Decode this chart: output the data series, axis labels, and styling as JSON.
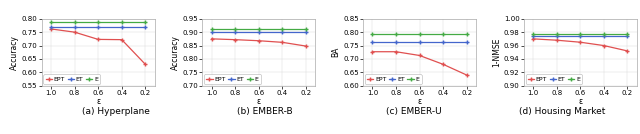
{
  "epsilon": [
    1.0,
    0.8,
    0.6,
    0.4,
    0.2
  ],
  "plots": [
    {
      "subtitle": "(a) Hyperplane",
      "ylabel": "Accuracy",
      "ylim": [
        0.55,
        0.8
      ],
      "yticks": [
        0.55,
        0.6,
        0.65,
        0.7,
        0.75,
        0.8
      ],
      "ytick_labels": [
        "0.55",
        "0.60",
        "0.65",
        "0.70",
        "0.75",
        "0.80"
      ],
      "EPT": [
        0.762,
        0.75,
        0.723,
        0.722,
        0.63
      ],
      "ET": [
        0.77,
        0.77,
        0.77,
        0.77,
        0.77
      ],
      "E": [
        0.787,
        0.787,
        0.787,
        0.787,
        0.787
      ]
    },
    {
      "subtitle": "(b) EMBER-B",
      "ylabel": "Accuracy",
      "ylim": [
        0.7,
        0.95
      ],
      "yticks": [
        0.7,
        0.75,
        0.8,
        0.85,
        0.9,
        0.95
      ],
      "ytick_labels": [
        "0.70",
        "0.75",
        "0.80",
        "0.85",
        "0.90",
        "0.95"
      ],
      "EPT": [
        0.875,
        0.872,
        0.868,
        0.862,
        0.848
      ],
      "ET": [
        0.9,
        0.9,
        0.9,
        0.9,
        0.9
      ],
      "E": [
        0.912,
        0.912,
        0.912,
        0.912,
        0.912
      ]
    },
    {
      "subtitle": "(c) EMBER-U",
      "ylabel": "BA",
      "ylim": [
        0.6,
        0.85
      ],
      "yticks": [
        0.6,
        0.65,
        0.7,
        0.75,
        0.8,
        0.85
      ],
      "ytick_labels": [
        "0.60",
        "0.65",
        "0.70",
        "0.75",
        "0.80",
        "0.85"
      ],
      "EPT": [
        0.727,
        0.727,
        0.713,
        0.68,
        0.64
      ],
      "ET": [
        0.762,
        0.762,
        0.762,
        0.762,
        0.762
      ],
      "E": [
        0.793,
        0.793,
        0.793,
        0.793,
        0.793
      ]
    },
    {
      "subtitle": "(d) Housing Market",
      "ylabel": "1-NMSE",
      "ylim": [
        0.9,
        1.0
      ],
      "yticks": [
        0.9,
        0.92,
        0.94,
        0.96,
        0.98,
        1.0
      ],
      "ytick_labels": [
        "0.90",
        "0.92",
        "0.94",
        "0.96",
        "0.98",
        "1.00"
      ],
      "EPT": [
        0.97,
        0.968,
        0.965,
        0.96,
        0.952
      ],
      "ET": [
        0.974,
        0.974,
        0.974,
        0.974,
        0.974
      ],
      "E": [
        0.977,
        0.977,
        0.977,
        0.977,
        0.977
      ]
    }
  ],
  "colors": {
    "EPT": "#e05050",
    "ET": "#4466cc",
    "E": "#44aa44"
  },
  "xlabel": "ε",
  "xticks": [
    1.0,
    0.8,
    0.6,
    0.4,
    0.2
  ],
  "xtick_labels": [
    "1.0",
    "0.8",
    "0.6",
    "0.4",
    "0.2"
  ],
  "xlim": [
    1.08,
    0.12
  ],
  "title_fontsize": 6.5,
  "label_fontsize": 5.5,
  "tick_fontsize": 5.0,
  "legend_fontsize": 4.5,
  "subtitle_fontsize": 6.5,
  "grid_color": "#dddddd",
  "line_width": 0.9,
  "marker_size": 2.5
}
